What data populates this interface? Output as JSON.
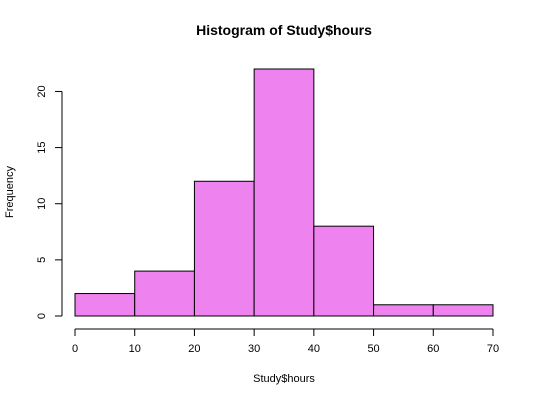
{
  "chart_data": {
    "type": "bar",
    "title": "Histogram of Study$hours",
    "xlabel": "Study$hours",
    "ylabel": "Frequency",
    "bins": [
      {
        "start": 0,
        "end": 10,
        "value": 2
      },
      {
        "start": 10,
        "end": 20,
        "value": 4
      },
      {
        "start": 20,
        "end": 30,
        "value": 12
      },
      {
        "start": 30,
        "end": 40,
        "value": 22
      },
      {
        "start": 40,
        "end": 50,
        "value": 8
      },
      {
        "start": 50,
        "end": 60,
        "value": 1
      },
      {
        "start": 60,
        "end": 70,
        "value": 1
      }
    ],
    "xlim": [
      0,
      70
    ],
    "ylim": [
      0,
      22
    ],
    "x_ticks": [
      "0",
      "10",
      "20",
      "30",
      "40",
      "50",
      "60",
      "70"
    ],
    "y_ticks": [
      "0",
      "5",
      "10",
      "15",
      "20"
    ],
    "bar_color": "#EE82EE",
    "edge_color": "#000000",
    "grid": false,
    "legend": "none"
  }
}
